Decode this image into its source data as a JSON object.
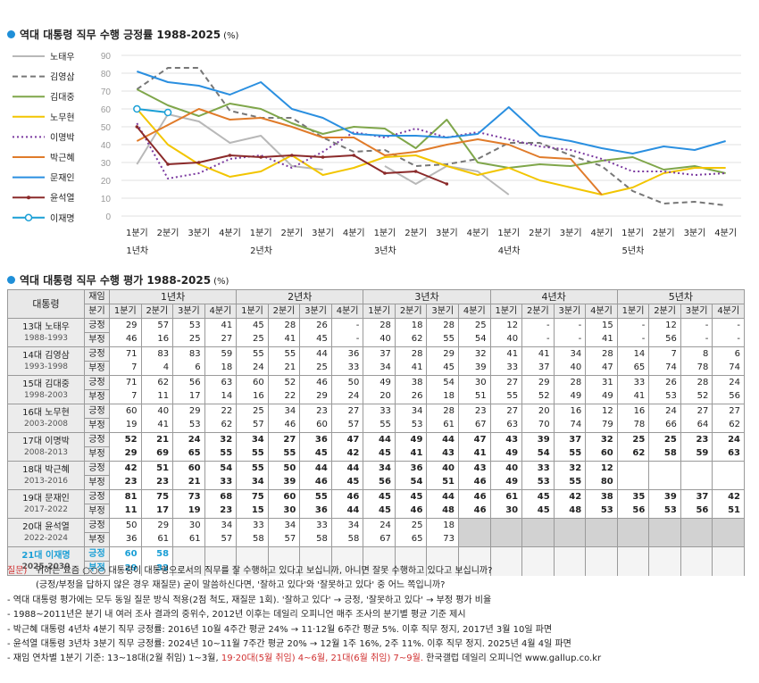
{
  "chart_title": "역대 대통령 직무 수행 긍정률 1988-2025",
  "chart_unit": "(%)",
  "chart_data": {
    "type": "line",
    "title": "역대 대통령 직무 수행 긍정률 1988-2025",
    "ylim": [
      0,
      90
    ],
    "yticks": [
      0,
      10,
      20,
      30,
      40,
      50,
      60,
      70,
      80,
      90
    ],
    "categories": [
      "1분기",
      "2분기",
      "3분기",
      "4분기",
      "1분기",
      "2분기",
      "3분기",
      "4분기",
      "1분기",
      "2분기",
      "3분기",
      "4분기",
      "1분기",
      "2분기",
      "3분기",
      "4분기",
      "1분기",
      "2분기",
      "3분기",
      "4분기"
    ],
    "year_labels": [
      "1년차",
      "2년차",
      "3년차",
      "4년차",
      "5년차"
    ],
    "grid": true,
    "legend_position": "left",
    "series": [
      {
        "name": "노태우",
        "color": "#b8b8b8",
        "style": "solid",
        "values": [
          29,
          57,
          53,
          41,
          45,
          28,
          26,
          null,
          28,
          18,
          28,
          25,
          12,
          null,
          null,
          15,
          null,
          12,
          null,
          null
        ]
      },
      {
        "name": "김영삼",
        "color": "#777777",
        "style": "dashed",
        "values": [
          71,
          83,
          83,
          59,
          55,
          55,
          44,
          36,
          37,
          28,
          29,
          32,
          41,
          41,
          34,
          28,
          14,
          7,
          8,
          6
        ]
      },
      {
        "name": "김대중",
        "color": "#7fa64a",
        "style": "solid",
        "values": [
          71,
          62,
          56,
          63,
          60,
          52,
          46,
          50,
          49,
          38,
          54,
          30,
          27,
          29,
          28,
          31,
          33,
          26,
          28,
          24
        ]
      },
      {
        "name": "노무현",
        "color": "#f2c500",
        "style": "solid",
        "values": [
          60,
          40,
          29,
          22,
          25,
          34,
          23,
          27,
          33,
          34,
          28,
          23,
          27,
          20,
          16,
          12,
          16,
          24,
          27,
          27
        ]
      },
      {
        "name": "이명박",
        "color": "#7b3aa0",
        "style": "dotted",
        "values": [
          52,
          21,
          24,
          32,
          34,
          27,
          36,
          47,
          44,
          49,
          44,
          47,
          43,
          39,
          37,
          32,
          25,
          25,
          23,
          24
        ]
      },
      {
        "name": "박근혜",
        "color": "#e07b2a",
        "style": "solid",
        "values": [
          42,
          51,
          60,
          54,
          55,
          50,
          44,
          44,
          34,
          36,
          40,
          43,
          40,
          33,
          32,
          12,
          null,
          null,
          null,
          null
        ]
      },
      {
        "name": "문재인",
        "color": "#2a8fe0",
        "style": "solid",
        "values": [
          81,
          75,
          73,
          68,
          75,
          60,
          55,
          46,
          45,
          45,
          44,
          46,
          61,
          45,
          42,
          38,
          35,
          39,
          37,
          42
        ]
      },
      {
        "name": "윤석열",
        "color": "#8b2a2a",
        "style": "solid-marker",
        "values": [
          50,
          29,
          30,
          34,
          33,
          34,
          33,
          34,
          24,
          25,
          18,
          null,
          null,
          null,
          null,
          null,
          null,
          null,
          null,
          null
        ]
      },
      {
        "name": "이재명",
        "color": "#1a9fd6",
        "style": "solid-circle",
        "values": [
          60,
          58,
          null,
          null,
          null,
          null,
          null,
          null,
          null,
          null,
          null,
          null,
          null,
          null,
          null,
          null,
          null,
          null,
          null,
          null
        ]
      }
    ]
  },
  "table_title": "역대 대통령 직무 수행 평가 1988-2025",
  "table_unit": "(%)",
  "table": {
    "header_president": "대통령",
    "header_term": "재임",
    "header_quarter": "분기",
    "year_headers": [
      "1년차",
      "2년차",
      "3년차",
      "4년차",
      "5년차"
    ],
    "quarters": [
      "1분기",
      "2분기",
      "3분기",
      "4분기",
      "1분기",
      "2분기",
      "3분기",
      "4분기",
      "1분기",
      "2분기",
      "3분기",
      "4분기",
      "1분기",
      "2분기",
      "3분기",
      "4분기",
      "1분기",
      "2분기",
      "3분기",
      "4분기"
    ],
    "label_pos": "긍정",
    "label_neg": "부정",
    "rows": [
      {
        "name": "13대 노태우",
        "years": "1988-1993",
        "pos": [
          "29",
          "57",
          "53",
          "41",
          "45",
          "28",
          "26",
          "-",
          "28",
          "18",
          "28",
          "25",
          "12",
          "-",
          "-",
          "15",
          "-",
          "12",
          "-",
          "-"
        ],
        "neg": [
          "46",
          "16",
          "25",
          "27",
          "25",
          "41",
          "45",
          "-",
          "40",
          "62",
          "55",
          "54",
          "40",
          "-",
          "-",
          "41",
          "-",
          "56",
          "-",
          "-"
        ]
      },
      {
        "name": "14대 김영삼",
        "years": "1993-1998",
        "pos": [
          "71",
          "83",
          "83",
          "59",
          "55",
          "55",
          "44",
          "36",
          "37",
          "28",
          "29",
          "32",
          "41",
          "41",
          "34",
          "28",
          "14",
          "7",
          "8",
          "6"
        ],
        "neg": [
          "7",
          "4",
          "6",
          "18",
          "24",
          "21",
          "25",
          "33",
          "34",
          "41",
          "45",
          "39",
          "33",
          "37",
          "40",
          "47",
          "65",
          "74",
          "78",
          "74"
        ]
      },
      {
        "name": "15대 김대중",
        "years": "1998-2003",
        "pos": [
          "71",
          "62",
          "56",
          "63",
          "60",
          "52",
          "46",
          "50",
          "49",
          "38",
          "54",
          "30",
          "27",
          "29",
          "28",
          "31",
          "33",
          "26",
          "28",
          "24"
        ],
        "neg": [
          "7",
          "11",
          "17",
          "14",
          "16",
          "22",
          "29",
          "24",
          "20",
          "26",
          "18",
          "51",
          "55",
          "52",
          "49",
          "49",
          "41",
          "53",
          "52",
          "56"
        ]
      },
      {
        "name": "16대 노무현",
        "years": "2003-2008",
        "pos": [
          "60",
          "40",
          "29",
          "22",
          "25",
          "34",
          "23",
          "27",
          "33",
          "34",
          "28",
          "23",
          "27",
          "20",
          "16",
          "12",
          "16",
          "24",
          "27",
          "27"
        ],
        "neg": [
          "19",
          "41",
          "53",
          "62",
          "57",
          "46",
          "60",
          "57",
          "55",
          "53",
          "61",
          "67",
          "63",
          "70",
          "74",
          "79",
          "78",
          "66",
          "64",
          "62"
        ]
      },
      {
        "name": "17대 이명박",
        "years": "2008-2013",
        "pos": [
          "52",
          "21",
          "24",
          "32",
          "34",
          "27",
          "36",
          "47",
          "44",
          "49",
          "44",
          "47",
          "43",
          "39",
          "37",
          "32",
          "25",
          "25",
          "23",
          "24"
        ],
        "neg": [
          "29",
          "69",
          "65",
          "55",
          "55",
          "55",
          "45",
          "42",
          "45",
          "41",
          "43",
          "41",
          "49",
          "54",
          "55",
          "60",
          "62",
          "58",
          "59",
          "63"
        ]
      },
      {
        "name": "18대 박근혜",
        "years": "2013-2016",
        "pos": [
          "42",
          "51",
          "60",
          "54",
          "55",
          "50",
          "44",
          "44",
          "34",
          "36",
          "40",
          "43",
          "40",
          "33",
          "32",
          "12",
          "",
          "",
          "",
          ""
        ],
        "neg": [
          "23",
          "23",
          "21",
          "33",
          "34",
          "39",
          "46",
          "45",
          "56",
          "54",
          "51",
          "46",
          "49",
          "53",
          "55",
          "80",
          "",
          "",
          "",
          ""
        ]
      },
      {
        "name": "19대 문재인",
        "years": "2017-2022",
        "pos": [
          "81",
          "75",
          "73",
          "68",
          "75",
          "60",
          "55",
          "46",
          "45",
          "45",
          "44",
          "46",
          "61",
          "45",
          "42",
          "38",
          "35",
          "39",
          "37",
          "42"
        ],
        "neg": [
          "11",
          "17",
          "19",
          "23",
          "15",
          "30",
          "36",
          "44",
          "45",
          "46",
          "48",
          "46",
          "30",
          "45",
          "48",
          "53",
          "56",
          "53",
          "56",
          "51"
        ]
      },
      {
        "name": "20대 윤석열",
        "years": "2022-2024",
        "pos": [
          "50",
          "29",
          "30",
          "34",
          "33",
          "34",
          "33",
          "34",
          "24",
          "25",
          "18",
          "",
          "",
          "",
          "",
          "",
          "",
          "",
          "",
          ""
        ],
        "neg": [
          "36",
          "61",
          "61",
          "57",
          "58",
          "57",
          "58",
          "58",
          "67",
          "65",
          "73",
          "",
          "",
          "",
          "",
          "",
          "",
          "",
          "",
          ""
        ]
      },
      {
        "name": "21대 이재명",
        "years": "2025-2030",
        "pos": [
          "60",
          "58",
          "",
          "",
          "",
          "",
          "",
          "",
          "",
          "",
          "",
          "",
          "",
          "",
          "",
          "",
          "",
          "",
          "",
          ""
        ],
        "neg": [
          "29",
          "32",
          "",
          "",
          "",
          "",
          "",
          "",
          "",
          "",
          "",
          "",
          "",
          "",
          "",
          "",
          "",
          "",
          "",
          ""
        ]
      }
    ]
  },
  "notes": {
    "q_label": "질문)",
    "q_line1": "귀하는 요즘 ○○○ 대통령이 대통령으로서의 직무를 잘 수행하고 있다고 보십니까, 아니면 잘못 수행하고 있다고 보십니까?",
    "q_line2": "(긍정/부정을 답하지 않은 경우 재질문) 굳이 말씀하신다면, '잘하고 있다'와 '잘못하고 있다' 중 어느 쪽입니까?",
    "n1": "- 역대 대통령 평가에는 모두 동일 질문 방식 적용(2점 척도, 재질문 1회). '잘하고 있다' → 긍정, '잘못하고 있다' → 부정 평가 비율",
    "n2": "- 1988~2011년은 분기 내 여러 조사 결과의 중위수, 2012년 이후는 데일리 오피니언 매주 조사의 분기별 평균 기준 제시",
    "n3": "- 박근혜 대통령 4년차 4분기 직무 긍정률: 2016년 10월 4주간 평균 24% → 11·12월 6주간 평균 5%. 이후 직무 정지, 2017년 3월 10일 파면",
    "n4": "- 윤석열 대통령 3년차 3분기 직무 긍정률: 2024년 10~11월 7주간 평균 20% → 12월 1주 16%, 2주 11%. 이후 직무 정지. 2025년 4월 4일 파면",
    "n5_a": "- 재임 연차별 1분기 기준: 13~18대(2월 취임) 1~3월, ",
    "n5_b": "19·20대(5월 취임) 4~6월, 21대(6월 취임) 7~9월.",
    "n5_c": " 한국갤럽 데일리 오피니언 www.gallup.co.kr"
  }
}
